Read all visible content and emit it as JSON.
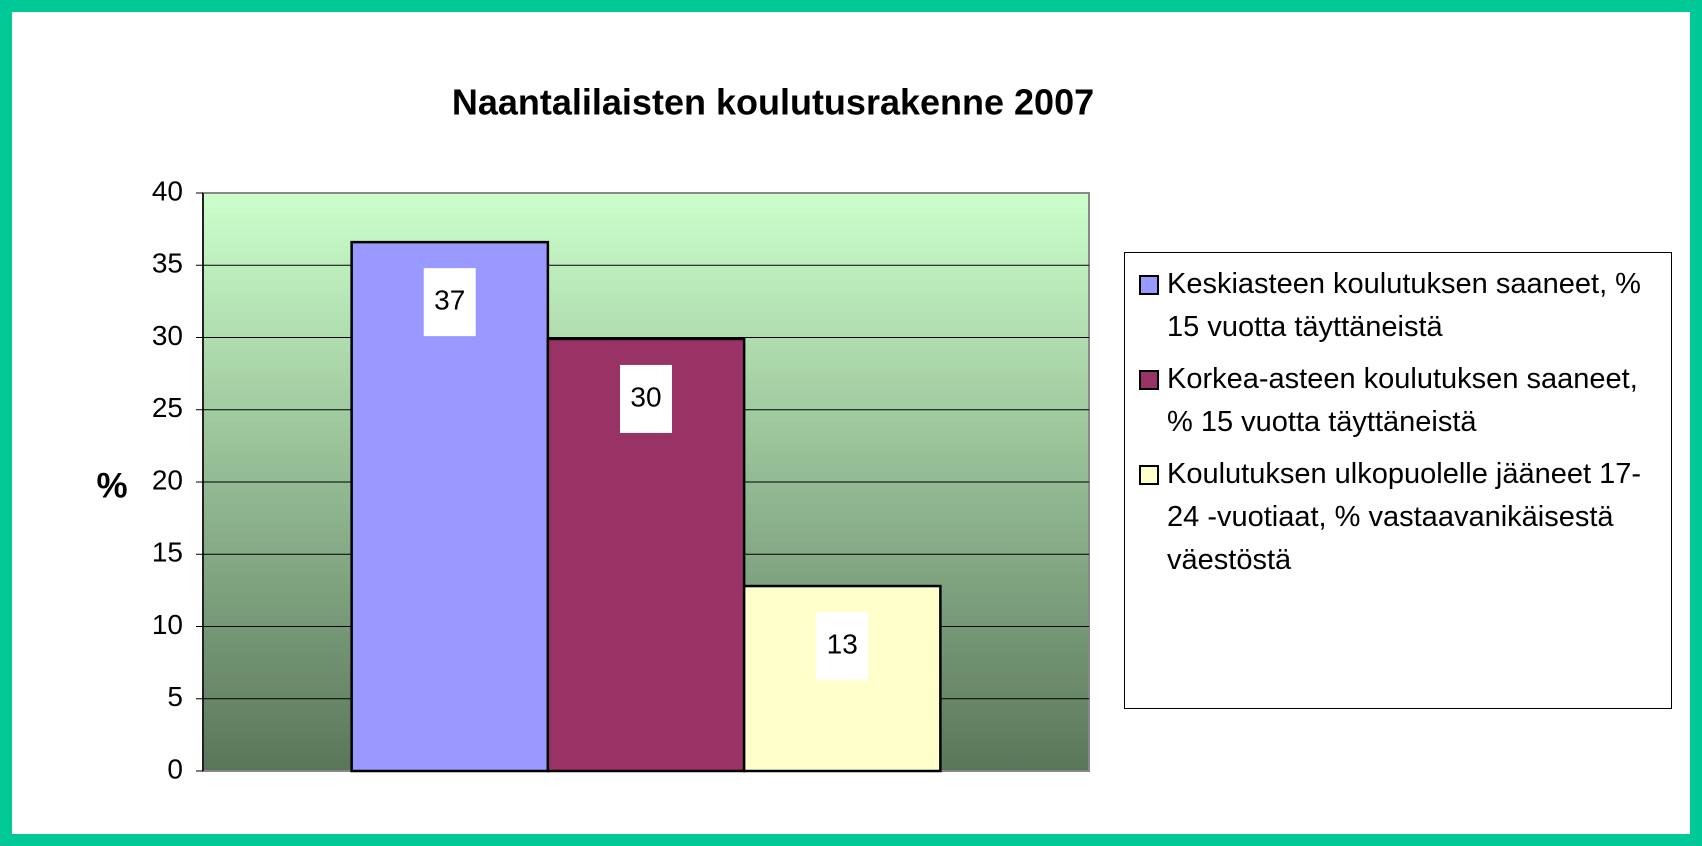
{
  "chart_data": {
    "type": "bar",
    "title": "Naantalilaisten koulutusrakenne 2007",
    "ylabel": "%",
    "categories": [
      null
    ],
    "series": [
      {
        "name": "Keskiasteen koulutuksen saaneet, % 15 vuotta täyttäneistä",
        "color": "#9999ff",
        "values": [
          36.6
        ],
        "value_labels": [
          "37"
        ]
      },
      {
        "name": "Korkea-asteen koulutuksen saaneet, % 15 vuotta täyttäneistä",
        "color": "#993366",
        "values": [
          29.9
        ],
        "value_labels": [
          "30"
        ]
      },
      {
        "name": "Koulutuksen ulkopuolelle jääneet 17-24 -vuotiaat, % vastaavanikäisestä väestöstä",
        "color": "#ffffcc",
        "values": [
          12.8
        ],
        "value_labels": [
          "13"
        ]
      }
    ],
    "ylim": [
      0,
      40
    ],
    "yticks": [
      0,
      5,
      10,
      15,
      20,
      25,
      30,
      35,
      40
    ],
    "grid": true,
    "legend": "right"
  }
}
